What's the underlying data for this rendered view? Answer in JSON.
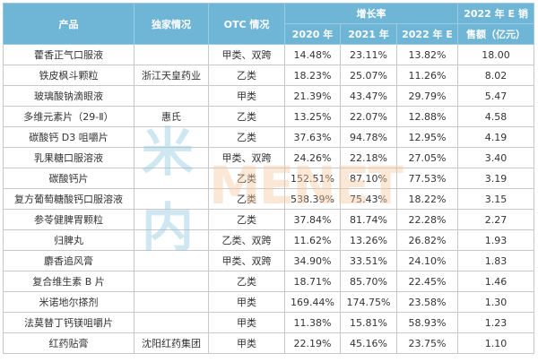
{
  "table": {
    "headers": {
      "product": "产品",
      "exclusive": "独家情况",
      "otc": "OTC 情况",
      "growth_group": "增长率",
      "y2020": "2020 年",
      "y2021": "2021 年",
      "y2022e": "2022 年 E",
      "sales_line1": "2022 年 E 销",
      "sales_line2": "售额（亿元）"
    },
    "rows": [
      {
        "product": "藿香正气口服液",
        "exclusive": "",
        "otc": "甲类、双跨",
        "g2020": "14.48%",
        "g2021": "23.11%",
        "g2022e": "13.82%",
        "sales": "18.00"
      },
      {
        "product": "铁皮枫斗颗粒",
        "exclusive": "浙江天皇药业",
        "otc": "乙类",
        "g2020": "18.23%",
        "g2021": "25.07%",
        "g2022e": "11.26%",
        "sales": "8.02"
      },
      {
        "product": "玻璃酸钠滴眼液",
        "exclusive": "",
        "otc": "甲类",
        "g2020": "21.39%",
        "g2021": "43.47%",
        "g2022e": "29.79%",
        "sales": "5.47"
      },
      {
        "product": "多维元素片（29-Ⅱ）",
        "exclusive": "惠氏",
        "otc": "乙类",
        "g2020": "13.25%",
        "g2021": "22.07%",
        "g2022e": "12.88%",
        "sales": "4.58"
      },
      {
        "product": "碳酸钙 D3 咀嚼片",
        "exclusive": "",
        "otc": "乙类",
        "g2020": "37.63%",
        "g2021": "94.78%",
        "g2022e": "12.95%",
        "sales": "4.19"
      },
      {
        "product": "乳果糖口服溶液",
        "exclusive": "",
        "otc": "甲类、双跨",
        "g2020": "24.26%",
        "g2021": "22.18%",
        "g2022e": "27.05%",
        "sales": "3.40"
      },
      {
        "product": "碳酸钙片",
        "exclusive": "",
        "otc": "乙类",
        "g2020": "152.51%",
        "g2021": "87.10%",
        "g2022e": "77.53%",
        "sales": "3.19"
      },
      {
        "product": "复方葡萄糖酸钙口服溶液",
        "exclusive": "",
        "otc": "乙类",
        "g2020": "538.39%",
        "g2021": "75.43%",
        "g2022e": "18.22%",
        "sales": "3.15"
      },
      {
        "product": "参苓健脾胃颗粒",
        "exclusive": "",
        "otc": "乙类",
        "g2020": "37.84%",
        "g2021": "81.74%",
        "g2022e": "22.28%",
        "sales": "2.27"
      },
      {
        "product": "归脾丸",
        "exclusive": "",
        "otc": "乙类、双跨",
        "g2020": "11.62%",
        "g2021": "13.26%",
        "g2022e": "26.82%",
        "sales": "1.93"
      },
      {
        "product": "麝香追风膏",
        "exclusive": "",
        "otc": "甲类、双跨",
        "g2020": "34.90%",
        "g2021": "33.51%",
        "g2022e": "24.10%",
        "sales": "1.83"
      },
      {
        "product": "复合维生素 B 片",
        "exclusive": "",
        "otc": "乙类",
        "g2020": "18.71%",
        "g2021": "85.70%",
        "g2022e": "22.45%",
        "sales": "1.46"
      },
      {
        "product": "米诺地尔搽剂",
        "exclusive": "",
        "otc": "甲类",
        "g2020": "169.44%",
        "g2021": "174.75%",
        "g2022e": "23.58%",
        "sales": "1.30"
      },
      {
        "product": "法莫替丁钙镁咀嚼片",
        "exclusive": "",
        "otc": "甲类",
        "g2020": "11.38%",
        "g2021": "15.81%",
        "g2022e": "58.93%",
        "sales": "1.23"
      },
      {
        "product": "红药贴膏",
        "exclusive": "沈阳红药集团",
        "otc": "甲类",
        "g2020": "22.19%",
        "g2021": "45.16%",
        "g2022e": "23.75%",
        "sales": "1.10"
      }
    ]
  },
  "watermark": {
    "cn": "米内",
    "en": "MENET"
  },
  "colors": {
    "header_bg": "#6fb5d6",
    "header_text": "#ffffff",
    "grid": "#c8c8c8"
  }
}
